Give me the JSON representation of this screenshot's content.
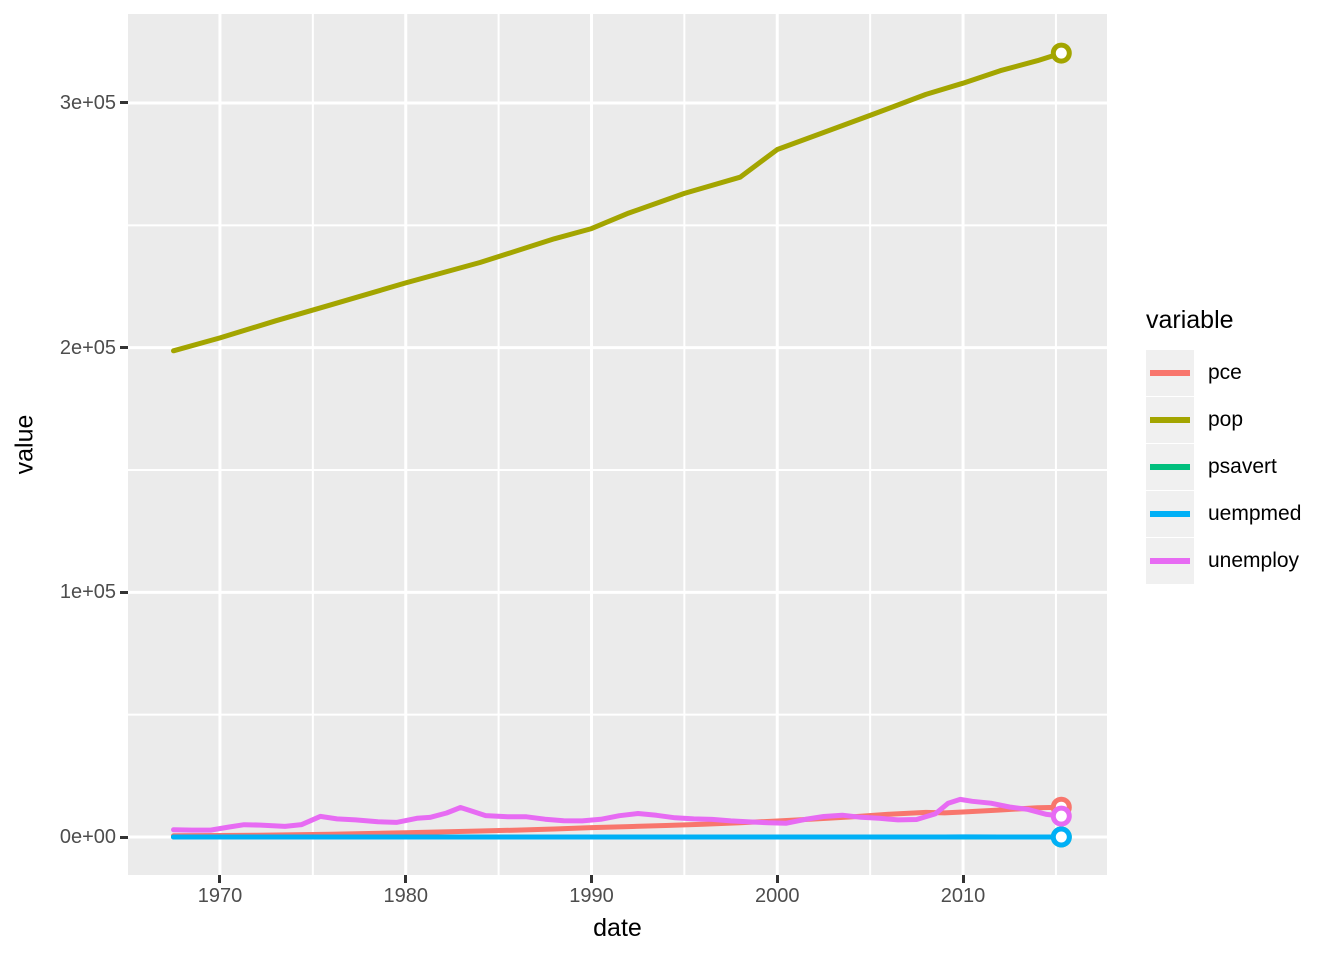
{
  "chart_data": {
    "type": "line",
    "title": "",
    "xlabel": "date",
    "ylabel": "value",
    "legend_title": "variable",
    "legend_position": "right",
    "panel_bg": "#EBEBEB",
    "grid_color": "#FFFFFF",
    "legend_key_bg": "#F0F0F0",
    "tick_label_color": "#4D4D4D",
    "x_domain": [
      1965.05,
      2017.75
    ],
    "y_domain": [
      -15531,
      336370
    ],
    "x_ticks": [
      {
        "label": "1970",
        "value": 1970
      },
      {
        "label": "1980",
        "value": 1980
      },
      {
        "label": "1990",
        "value": 1990
      },
      {
        "label": "2000",
        "value": 2000
      },
      {
        "label": "2010",
        "value": 2010
      }
    ],
    "x_minor": [
      1975,
      1985,
      1995,
      2005,
      2015
    ],
    "y_ticks": [
      {
        "label": "0e+00",
        "value": 0
      },
      {
        "label": "1e+05",
        "value": 100000
      },
      {
        "label": "2e+05",
        "value": 200000
      },
      {
        "label": "3e+05",
        "value": 300000
      }
    ],
    "y_minor": [
      50000,
      150000,
      250000
    ],
    "series": [
      {
        "name": "pce",
        "color": "#F8766D",
        "end_marker": true,
        "points": [
          [
            1967.5,
            507
          ],
          [
            1970,
            622
          ],
          [
            1972,
            738
          ],
          [
            1974,
            912
          ],
          [
            1976,
            1151
          ],
          [
            1978,
            1429
          ],
          [
            1980,
            1755
          ],
          [
            1982,
            2079
          ],
          [
            1984,
            2459
          ],
          [
            1986,
            2802
          ],
          [
            1988,
            3274
          ],
          [
            1990,
            3840
          ],
          [
            1992,
            4237
          ],
          [
            1994,
            4711
          ],
          [
            1996,
            5241
          ],
          [
            1998,
            5865
          ],
          [
            2000,
            6535
          ],
          [
            2002,
            7354
          ],
          [
            2004,
            8212
          ],
          [
            2006,
            9292
          ],
          [
            2008,
            10036
          ],
          [
            2009,
            9853
          ],
          [
            2010,
            10202
          ],
          [
            2012,
            11055
          ],
          [
            2014,
            11930
          ],
          [
            2015.29,
            12194
          ]
        ]
      },
      {
        "name": "pop",
        "color": "#A3A500",
        "end_marker": true,
        "points": [
          [
            1967.5,
            198712
          ],
          [
            1970,
            203984
          ],
          [
            1973,
            210985
          ],
          [
            1976,
            217563
          ],
          [
            1980,
            226451
          ],
          [
            1984,
            234786
          ],
          [
            1988,
            244499
          ],
          [
            1990,
            248659
          ],
          [
            1992,
            254995
          ],
          [
            1995,
            263034
          ],
          [
            1998,
            269667
          ],
          [
            2000,
            280976
          ],
          [
            2005,
            294914
          ],
          [
            2008,
            303506
          ],
          [
            2010,
            308106
          ],
          [
            2012,
            313183
          ],
          [
            2014,
            317298
          ],
          [
            2015.29,
            320402
          ]
        ]
      },
      {
        "name": "psavert",
        "color": "#00BF7D",
        "end_marker": true,
        "points": [
          [
            1967.5,
            12.6
          ],
          [
            1971,
            13.3
          ],
          [
            1975,
            17.3
          ],
          [
            1980,
            11.3
          ],
          [
            1985,
            9.0
          ],
          [
            1990,
            8.0
          ],
          [
            1995,
            6.4
          ],
          [
            2000,
            4.5
          ],
          [
            2005,
            2.6
          ],
          [
            2008,
            3.8
          ],
          [
            2010,
            5.8
          ],
          [
            2012,
            8.9
          ],
          [
            2015.29,
            5.6
          ]
        ]
      },
      {
        "name": "uempmed",
        "color": "#00B0F6",
        "end_marker": true,
        "points": [
          [
            1967.5,
            4.5
          ],
          [
            1970,
            4.6
          ],
          [
            1975,
            9.8
          ],
          [
            1980,
            5.9
          ],
          [
            1983,
            10.1
          ],
          [
            1988,
            6.3
          ],
          [
            1992,
            8.8
          ],
          [
            1995,
            8.3
          ],
          [
            2000,
            5.8
          ],
          [
            2004,
            10.4
          ],
          [
            2007,
            8.5
          ],
          [
            2009,
            17.1
          ],
          [
            2010,
            25.2
          ],
          [
            2012,
            19.8
          ],
          [
            2015.29,
            11.7
          ]
        ]
      },
      {
        "name": "unemploy",
        "color": "#E76BF3",
        "end_marker": true,
        "points": [
          [
            1967.5,
            2940
          ],
          [
            1968.5,
            2820
          ],
          [
            1969.5,
            2830
          ],
          [
            1970.5,
            4090
          ],
          [
            1971.3,
            5020
          ],
          [
            1972.2,
            4880
          ],
          [
            1973.5,
            4330
          ],
          [
            1974.4,
            5080
          ],
          [
            1975.4,
            8430
          ],
          [
            1976.3,
            7400
          ],
          [
            1977.3,
            7000
          ],
          [
            1978.5,
            6200
          ],
          [
            1979.5,
            5980
          ],
          [
            1980.6,
            7640
          ],
          [
            1981.3,
            8000
          ],
          [
            1982.2,
            9800
          ],
          [
            1982.95,
            12050
          ],
          [
            1983.5,
            10700
          ],
          [
            1984.3,
            8740
          ],
          [
            1985.5,
            8300
          ],
          [
            1986.5,
            8240
          ],
          [
            1987.5,
            7280
          ],
          [
            1988.5,
            6660
          ],
          [
            1989.5,
            6590
          ],
          [
            1990.5,
            7220
          ],
          [
            1991.5,
            8710
          ],
          [
            1992.5,
            9610
          ],
          [
            1993.5,
            8860
          ],
          [
            1994.5,
            7860
          ],
          [
            1995.5,
            7410
          ],
          [
            1996.5,
            7190
          ],
          [
            1997.5,
            6570
          ],
          [
            1998.5,
            6170
          ],
          [
            1999.5,
            5790
          ],
          [
            2000.5,
            5660
          ],
          [
            2001.5,
            7180
          ],
          [
            2002.5,
            8360
          ],
          [
            2003.5,
            8900
          ],
          [
            2004.5,
            8070
          ],
          [
            2005.5,
            7650
          ],
          [
            2006.5,
            6970
          ],
          [
            2007.5,
            7150
          ],
          [
            2008.5,
            9440
          ],
          [
            2009.2,
            13800
          ],
          [
            2009.85,
            15350
          ],
          [
            2010.5,
            14600
          ],
          [
            2011.5,
            13820
          ],
          [
            2012.5,
            12270
          ],
          [
            2013.5,
            11270
          ],
          [
            2014.5,
            9240
          ],
          [
            2015.29,
            8550
          ]
        ]
      }
    ],
    "style": {
      "line_width": 5,
      "marker_radius": 8,
      "marker_stroke_width": 5,
      "grid_major_width": 3,
      "grid_minor_width": 2
    }
  }
}
